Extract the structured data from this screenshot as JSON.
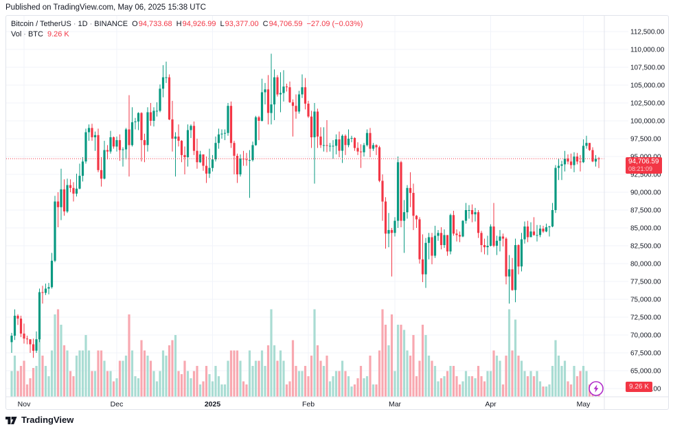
{
  "published_line": "Published on TradingView.com, May 06, 2025 15:38 UTC",
  "legend": {
    "symbol": "Bitcoin / TetherUS",
    "separator": "·",
    "interval": "1D",
    "exchange": "BINANCE",
    "ohlc": [
      {
        "label": "O",
        "value": "94,733.68"
      },
      {
        "label": "H",
        "value": "94,926.99"
      },
      {
        "label": "L",
        "value": "93,377.00"
      },
      {
        "label": "C",
        "value": "94,706.59"
      }
    ],
    "change": "−27.09 (−0.03%)",
    "volume_label": "Vol",
    "volume_unit": "BTC",
    "volume_value": "9.26 K"
  },
  "price_line": {
    "price": 94706.59,
    "label": "94,706.59",
    "countdown": "08:21:09"
  },
  "volume_badge": "9.26 K",
  "footer": {
    "brand": "TradingView"
  },
  "colors": {
    "up": "#089981",
    "down": "#F23645",
    "volume_up": "#A9DCD3",
    "volume_down": "#F8A8B0",
    "accent": "#F23645",
    "purple": "#B02BC9",
    "grid": "#F0F3FA",
    "border": "#E0E3EB",
    "text": "#131722"
  },
  "price_scale": {
    "min": 62500,
    "max": 112500,
    "step": 2500,
    "labels": [
      "112,500.00",
      "110,000.00",
      "107,500.00",
      "105,000.00",
      "102,500.00",
      "100,000.00",
      "97,500.00",
      "95,000.00",
      "92,500.00",
      "90,000.00",
      "87,500.00",
      "85,000.00",
      "82,500.00",
      "80,000.00",
      "77,500.00",
      "75,000.00",
      "72,500.00",
      "70,000.00",
      "67,500.00",
      "65,000.00",
      "62,500.00"
    ]
  },
  "time_scale": {
    "labels": [
      {
        "text": "Nov",
        "candle_index": 4,
        "bold": false
      },
      {
        "text": "Dec",
        "candle_index": 34,
        "bold": false
      },
      {
        "text": "2025",
        "candle_index": 65,
        "bold": true
      },
      {
        "text": "Feb",
        "candle_index": 96,
        "bold": false
      },
      {
        "text": "Mar",
        "candle_index": 124,
        "bold": false
      },
      {
        "text": "Apr",
        "candle_index": 155,
        "bold": false
      },
      {
        "text": "May",
        "candle_index": 185,
        "bold": false
      }
    ]
  },
  "chart_data": {
    "type": "candlestick",
    "title": "Bitcoin / TetherUS",
    "exchange": "BINANCE",
    "interval": "1D",
    "start_date": "2024-10-28",
    "price_axis_range": [
      62500,
      112500
    ],
    "grid": true,
    "volume_unit": "K BTC",
    "current_close": 94706.59,
    "candles_format": [
      "open",
      "high",
      "low",
      "close",
      "volume_kBTC"
    ],
    "candles": [
      [
        69000,
        70300,
        67500,
        69900,
        25
      ],
      [
        69900,
        73600,
        69300,
        72700,
        40
      ],
      [
        72700,
        72900,
        71400,
        72300,
        25
      ],
      [
        72300,
        72700,
        69700,
        70200,
        30
      ],
      [
        70200,
        71600,
        68800,
        69500,
        35
      ],
      [
        69500,
        69900,
        68700,
        69400,
        12
      ],
      [
        69400,
        69400,
        67500,
        68700,
        18
      ],
      [
        68700,
        69500,
        66800,
        67800,
        28
      ],
      [
        67800,
        70500,
        67500,
        69400,
        30
      ],
      [
        69400,
        76500,
        69000,
        76000,
        75
      ],
      [
        76000,
        76900,
        74400,
        75900,
        40
      ],
      [
        75900,
        77200,
        75600,
        76500,
        30
      ],
      [
        76500,
        77300,
        75700,
        76700,
        20
      ],
      [
        76700,
        81500,
        76500,
        80400,
        45
      ],
      [
        80400,
        89500,
        80200,
        88700,
        80
      ],
      [
        88700,
        90000,
        85100,
        87900,
        85
      ],
      [
        87900,
        93300,
        86100,
        90400,
        70
      ],
      [
        90400,
        91800,
        86700,
        87300,
        50
      ],
      [
        87300,
        91900,
        87100,
        91000,
        45
      ],
      [
        91000,
        91800,
        90000,
        90600,
        25
      ],
      [
        90600,
        91400,
        88700,
        89800,
        20
      ],
      [
        89800,
        92600,
        89400,
        90500,
        40
      ],
      [
        90500,
        94000,
        90400,
        92300,
        45
      ],
      [
        92300,
        94900,
        91500,
        94300,
        45
      ],
      [
        94300,
        98900,
        94000,
        98400,
        60
      ],
      [
        98400,
        99500,
        97200,
        99000,
        45
      ],
      [
        99000,
        99600,
        97200,
        97700,
        25
      ],
      [
        97700,
        98500,
        95800,
        98000,
        25
      ],
      [
        98000,
        98900,
        92800,
        93100,
        45
      ],
      [
        93100,
        94900,
        90800,
        91900,
        45
      ],
      [
        91900,
        97200,
        91800,
        95900,
        35
      ],
      [
        95900,
        96600,
        94600,
        95700,
        25
      ],
      [
        95700,
        98600,
        95400,
        97700,
        25
      ],
      [
        97700,
        97800,
        96100,
        96400,
        15
      ],
      [
        96400,
        97800,
        95700,
        97300,
        18
      ],
      [
        97300,
        98100,
        94400,
        95900,
        35
      ],
      [
        95900,
        96300,
        93600,
        96000,
        35
      ],
      [
        96000,
        99000,
        94600,
        98800,
        40
      ],
      [
        98800,
        103600,
        92200,
        96600,
        80
      ],
      [
        96600,
        101900,
        96400,
        99800,
        45
      ],
      [
        99800,
        100400,
        98800,
        99900,
        20
      ],
      [
        99900,
        101200,
        98700,
        101100,
        18
      ],
      [
        101100,
        101200,
        94300,
        97300,
        55
      ],
      [
        97300,
        98200,
        94200,
        96600,
        45
      ],
      [
        96600,
        101900,
        95700,
        101200,
        40
      ],
      [
        101200,
        102500,
        99300,
        100000,
        35
      ],
      [
        100000,
        101900,
        99200,
        101400,
        25
      ],
      [
        101400,
        102600,
        100600,
        101400,
        15
      ],
      [
        101400,
        105100,
        101200,
        104500,
        25
      ],
      [
        104500,
        107800,
        103300,
        106100,
        45
      ],
      [
        106100,
        108300,
        105300,
        106100,
        40
      ],
      [
        106100,
        106500,
        100100,
        100200,
        50
      ],
      [
        100200,
        102800,
        95700,
        97500,
        55
      ],
      [
        97500,
        98400,
        92200,
        97800,
        60
      ],
      [
        97800,
        99500,
        96400,
        97200,
        25
      ],
      [
        97200,
        97300,
        94200,
        95200,
        22
      ],
      [
        95200,
        96400,
        92500,
        94900,
        35
      ],
      [
        94900,
        99500,
        93600,
        98700,
        25
      ],
      [
        98700,
        99500,
        97600,
        99300,
        18
      ],
      [
        99300,
        99900,
        95200,
        95800,
        25
      ],
      [
        95800,
        97500,
        93300,
        94200,
        30
      ],
      [
        94200,
        95800,
        94100,
        95300,
        12
      ],
      [
        95300,
        95300,
        93000,
        93700,
        15
      ],
      [
        93700,
        95000,
        91300,
        92600,
        30
      ],
      [
        92600,
        96100,
        92000,
        93400,
        22
      ],
      [
        93400,
        95200,
        92900,
        94600,
        15
      ],
      [
        94600,
        97800,
        94300,
        96900,
        30
      ],
      [
        96900,
        98900,
        96100,
        98100,
        20
      ],
      [
        98100,
        98800,
        97500,
        98200,
        12
      ],
      [
        98200,
        98800,
        97300,
        98300,
        12
      ],
      [
        98300,
        102500,
        97900,
        102100,
        35
      ],
      [
        102100,
        102700,
        96200,
        96900,
        45
      ],
      [
        96900,
        97200,
        92500,
        95100,
        45
      ],
      [
        95100,
        95400,
        91300,
        92500,
        45
      ],
      [
        92500,
        95300,
        92200,
        94700,
        35
      ],
      [
        94700,
        95800,
        93700,
        94600,
        15
      ],
      [
        94600,
        95500,
        93700,
        94500,
        12
      ],
      [
        94500,
        95900,
        89200,
        94500,
        45
      ],
      [
        94500,
        97100,
        94300,
        96600,
        30
      ],
      [
        96600,
        100700,
        96500,
        100500,
        35
      ],
      [
        100500,
        100700,
        97300,
        100000,
        35
      ],
      [
        100000,
        105900,
        99900,
        104000,
        45
      ],
      [
        104000,
        105300,
        102300,
        104400,
        30
      ],
      [
        104400,
        106400,
        99500,
        101100,
        50
      ],
      [
        101100,
        109400,
        99500,
        102300,
        85
      ],
      [
        102300,
        107200,
        100100,
        106100,
        50
      ],
      [
        106100,
        106400,
        103400,
        103700,
        35
      ],
      [
        103700,
        106800,
        101200,
        103900,
        45
      ],
      [
        103900,
        107100,
        102700,
        104800,
        35
      ],
      [
        104800,
        105200,
        104100,
        104700,
        12
      ],
      [
        104700,
        105500,
        102500,
        102600,
        15
      ],
      [
        102600,
        103000,
        97800,
        102100,
        55
      ],
      [
        102100,
        103700,
        100300,
        101300,
        30
      ],
      [
        101300,
        104200,
        101000,
        103700,
        25
      ],
      [
        103700,
        106500,
        103200,
        104700,
        25
      ],
      [
        104700,
        106000,
        101600,
        102400,
        30
      ],
      [
        102400,
        102800,
        100400,
        100600,
        20
      ],
      [
        100600,
        101400,
        96200,
        97700,
        40
      ],
      [
        97700,
        102500,
        91200,
        101300,
        85
      ],
      [
        101300,
        101700,
        96200,
        97800,
        50
      ],
      [
        97800,
        99100,
        96200,
        96600,
        35
      ],
      [
        96600,
        99100,
        95700,
        96600,
        30
      ],
      [
        96600,
        100100,
        95600,
        96500,
        40
      ],
      [
        96500,
        96900,
        95700,
        96500,
        15
      ],
      [
        96500,
        97300,
        94700,
        96500,
        20
      ],
      [
        96500,
        98100,
        95300,
        97400,
        25
      ],
      [
        97400,
        98500,
        94900,
        95800,
        25
      ],
      [
        95800,
        98100,
        94100,
        97900,
        35
      ],
      [
        97900,
        98100,
        95200,
        96600,
        25
      ],
      [
        96600,
        98800,
        96300,
        97500,
        20
      ],
      [
        97500,
        97900,
        97000,
        97600,
        10
      ],
      [
        97600,
        97700,
        95800,
        96200,
        12
      ],
      [
        96200,
        97000,
        95200,
        95700,
        18
      ],
      [
        95700,
        96700,
        93400,
        95600,
        30
      ],
      [
        95600,
        96900,
        95000,
        96600,
        18
      ],
      [
        96600,
        98800,
        96400,
        98300,
        20
      ],
      [
        98300,
        99000,
        94900,
        96100,
        40
      ],
      [
        96100,
        96900,
        95800,
        96600,
        12
      ],
      [
        96600,
        96700,
        95200,
        96300,
        12
      ],
      [
        96300,
        96500,
        91400,
        91600,
        45
      ],
      [
        91600,
        92500,
        86000,
        88700,
        85
      ],
      [
        88700,
        89300,
        82100,
        84200,
        70
      ],
      [
        84200,
        87100,
        82300,
        84700,
        50
      ],
      [
        84700,
        85000,
        78200,
        84300,
        80
      ],
      [
        84300,
        86500,
        83800,
        86000,
        25
      ],
      [
        86000,
        95000,
        85000,
        94200,
        70
      ],
      [
        94200,
        94400,
        85100,
        86000,
        70
      ],
      [
        86000,
        88900,
        81500,
        87200,
        65
      ],
      [
        87200,
        91000,
        86300,
        90600,
        45
      ],
      [
        90600,
        92800,
        87900,
        89900,
        40
      ],
      [
        89900,
        91200,
        84700,
        86700,
        60
      ],
      [
        86700,
        86800,
        85000,
        86200,
        20
      ],
      [
        86200,
        86500,
        80000,
        80600,
        35
      ],
      [
        80600,
        84100,
        77400,
        78500,
        70
      ],
      [
        78500,
        83600,
        76600,
        82900,
        60
      ],
      [
        82900,
        84300,
        80600,
        83700,
        40
      ],
      [
        83700,
        84300,
        79900,
        81100,
        35
      ],
      [
        81100,
        85300,
        80800,
        83900,
        30
      ],
      [
        83900,
        84700,
        83200,
        84300,
        15
      ],
      [
        84300,
        85100,
        82000,
        82600,
        18
      ],
      [
        82600,
        84800,
        82200,
        84000,
        20
      ],
      [
        84000,
        84000,
        81100,
        81700,
        25
      ],
      [
        81700,
        87000,
        81300,
        86800,
        30
      ],
      [
        86800,
        87400,
        83900,
        84200,
        30
      ],
      [
        84200,
        84800,
        83100,
        84000,
        20
      ],
      [
        84000,
        84500,
        83000,
        83800,
        12
      ],
      [
        83800,
        86100,
        83700,
        86000,
        15
      ],
      [
        86000,
        88500,
        85600,
        87500,
        25
      ],
      [
        87500,
        88200,
        86300,
        87500,
        20
      ],
      [
        87500,
        88300,
        85800,
        86900,
        20
      ],
      [
        86900,
        87800,
        85900,
        87200,
        18
      ],
      [
        87200,
        87500,
        83600,
        84300,
        30
      ],
      [
        84300,
        84600,
        81600,
        82600,
        20
      ],
      [
        82600,
        83500,
        81300,
        82300,
        15
      ],
      [
        82300,
        83900,
        81200,
        82500,
        25
      ],
      [
        82500,
        85500,
        82400,
        85200,
        25
      ],
      [
        85200,
        88500,
        82300,
        82500,
        45
      ],
      [
        82500,
        83900,
        81200,
        83200,
        40
      ],
      [
        83200,
        84700,
        81700,
        83800,
        35
      ],
      [
        83800,
        84200,
        82400,
        83500,
        12
      ],
      [
        83500,
        83700,
        77100,
        78200,
        40
      ],
      [
        78200,
        81200,
        74400,
        79200,
        85
      ],
      [
        79200,
        80800,
        76200,
        76300,
        45
      ],
      [
        76300,
        83500,
        74600,
        82600,
        75
      ],
      [
        82600,
        82700,
        78500,
        79600,
        40
      ],
      [
        79600,
        84300,
        78900,
        83400,
        35
      ],
      [
        83400,
        85900,
        82800,
        85200,
        25
      ],
      [
        85200,
        86000,
        83000,
        83700,
        20
      ],
      [
        83700,
        85800,
        83700,
        84500,
        25
      ],
      [
        84500,
        86500,
        83900,
        84000,
        20
      ],
      [
        84000,
        85400,
        83100,
        84000,
        25
      ],
      [
        84000,
        85400,
        83700,
        84900,
        15
      ],
      [
        84900,
        85300,
        84300,
        84500,
        10
      ],
      [
        84500,
        85600,
        84400,
        85100,
        10
      ],
      [
        85100,
        85300,
        83800,
        85200,
        12
      ],
      [
        85200,
        88500,
        85100,
        87500,
        30
      ],
      [
        87500,
        93800,
        87100,
        93400,
        55
      ],
      [
        93400,
        94700,
        91700,
        93700,
        40
      ],
      [
        93700,
        94400,
        91700,
        93900,
        30
      ],
      [
        93900,
        95800,
        92900,
        94700,
        35
      ],
      [
        94700,
        95300,
        93900,
        94300,
        15
      ],
      [
        94300,
        95400,
        93300,
        93800,
        12
      ],
      [
        93800,
        95600,
        92800,
        95000,
        30
      ],
      [
        95000,
        95500,
        93900,
        94300,
        20
      ],
      [
        94300,
        95200,
        92900,
        94200,
        25
      ],
      [
        94200,
        97400,
        94100,
        96500,
        30
      ],
      [
        96500,
        97900,
        96100,
        96900,
        25
      ],
      [
        96900,
        96900,
        95800,
        95900,
        12
      ],
      [
        95900,
        96300,
        94200,
        94300,
        12
      ],
      [
        94300,
        95200,
        93600,
        94700,
        15
      ],
      [
        94733.68,
        94926.99,
        93377,
        94706.59,
        9.26
      ]
    ]
  }
}
